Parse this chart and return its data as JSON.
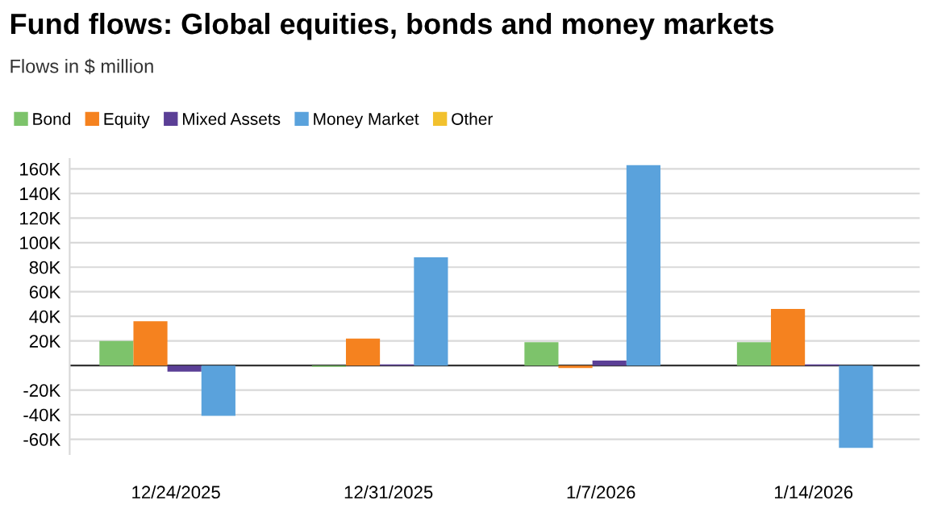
{
  "chart_data": {
    "type": "bar",
    "title": "Fund flows: Global equities, bonds and money markets",
    "subtitle": "Flows in $ million",
    "categories": [
      "12/24/2025",
      "12/31/2025",
      "1/7/2026",
      "1/14/2026"
    ],
    "series": [
      {
        "name": "Bond",
        "color": "#7dc36b",
        "values": [
          20000,
          -1000,
          19000,
          19000
        ]
      },
      {
        "name": "Equity",
        "color": "#f5821f",
        "values": [
          36000,
          22000,
          -2000,
          46000
        ]
      },
      {
        "name": "Mixed Assets",
        "color": "#5b3f96",
        "values": [
          -5000,
          1000,
          4000,
          1000
        ]
      },
      {
        "name": "Money Market",
        "color": "#5aa2dc",
        "values": [
          -41000,
          88000,
          163000,
          -67000
        ]
      },
      {
        "name": "Other",
        "color": "#f2c12e",
        "values": [
          0,
          0,
          0,
          0
        ]
      }
    ],
    "ylim": [
      -72000,
      168000
    ],
    "yticks": [
      {
        "value": -60000,
        "label": "-60K"
      },
      {
        "value": -40000,
        "label": "-40K"
      },
      {
        "value": -20000,
        "label": "-20K"
      },
      {
        "value": 0,
        "label": null
      },
      {
        "value": 20000,
        "label": "20K"
      },
      {
        "value": 40000,
        "label": "40K"
      },
      {
        "value": 60000,
        "label": "60K"
      },
      {
        "value": 80000,
        "label": "80K"
      },
      {
        "value": 100000,
        "label": "100K"
      },
      {
        "value": 120000,
        "label": "120K"
      },
      {
        "value": 140000,
        "label": "140K"
      },
      {
        "value": 160000,
        "label": "160K"
      }
    ],
    "grid": "y",
    "legend": "top left"
  }
}
